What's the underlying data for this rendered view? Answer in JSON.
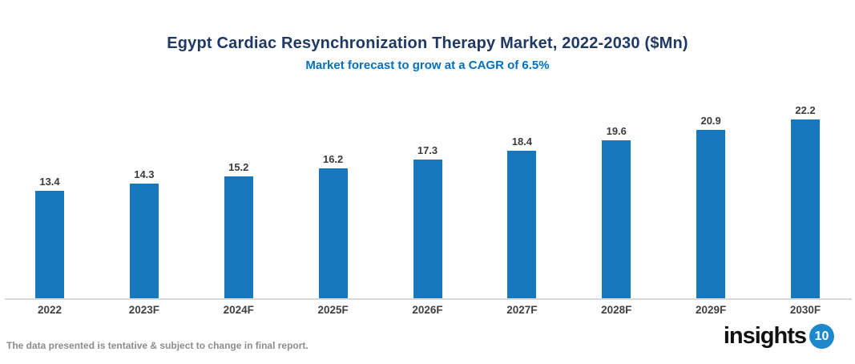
{
  "header": {
    "title": "Egypt Cardiac Resynchronization Therapy Market, 2022-2030 ($Mn)",
    "subtitle": "Market forecast to grow at a CAGR of 6.5%"
  },
  "chart_data": {
    "type": "bar",
    "categories": [
      "2022",
      "2023F",
      "2024F",
      "2025F",
      "2026F",
      "2027F",
      "2028F",
      "2029F",
      "2030F"
    ],
    "values": [
      13.4,
      14.3,
      15.2,
      16.2,
      17.3,
      18.4,
      19.6,
      20.9,
      22.2
    ],
    "title": "Egypt Cardiac Resynchronization Therapy Market, 2022-2030 ($Mn)",
    "subtitle": "Market forecast to grow at a CAGR of 6.5%",
    "xlabel": "",
    "ylabel": "",
    "ylim": [
      0,
      25
    ],
    "grid": false,
    "legend": "none",
    "data_labels": true
  },
  "footer": {
    "disclaimer": "The data presented is tentative & subject to change in final report.",
    "logo": {
      "text": "insights",
      "badge": "10"
    }
  },
  "colors": {
    "title": "#1F3864",
    "subtitle": "#0070C0",
    "bar": "#1878BE",
    "value_label": "#3B3B3B",
    "axis_label": "#404040",
    "axis_line": "#D9D9D9",
    "disclaimer": "#8C8C8C",
    "logo_text": "#111111",
    "logo_badge_bg": "#1E88C8",
    "logo_badge_text": "#FFFFFF",
    "background": "#FFFFFF"
  }
}
